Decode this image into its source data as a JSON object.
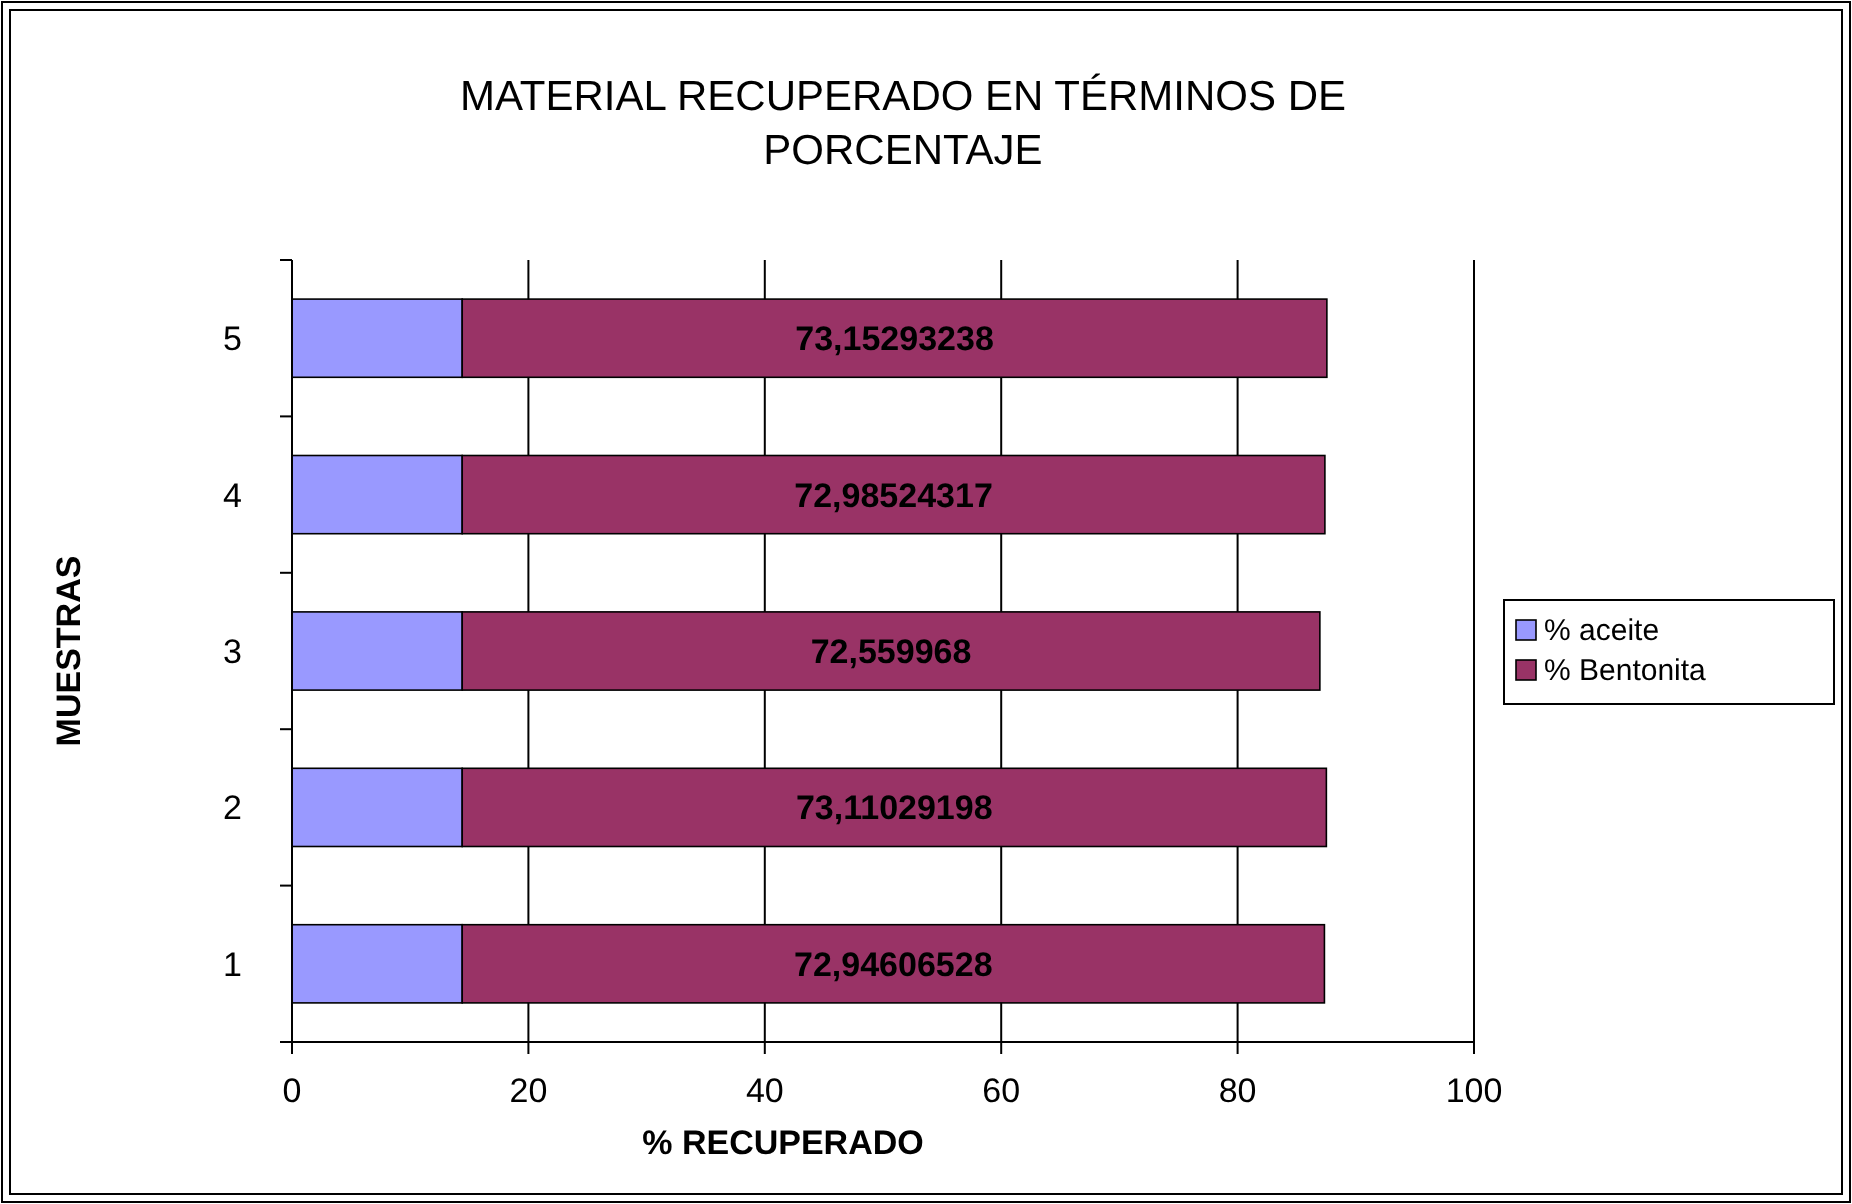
{
  "chart_data": {
    "type": "bar",
    "title": "MATERIAL RECUPERADO EN TÉRMINOS DE PORCENTAJE",
    "xlabel": "% RECUPERADO",
    "ylabel": "MUESTRAS",
    "orientation": "horizontal",
    "stacked": true,
    "categories": [
      "5",
      "4",
      "3",
      "2",
      "1"
    ],
    "series": [
      {
        "name": "% aceite",
        "color": "#9999ff",
        "values": [
          14.4,
          14.4,
          14.4,
          14.4,
          14.4
        ]
      },
      {
        "name": "% Bentonita",
        "color": "#993366",
        "values": [
          73.15293238,
          72.98524317,
          72.559968,
          73.11029198,
          72.94606528
        ],
        "value_labels": [
          "73,15293238",
          "72,98524317",
          "72,559968",
          "73,11029198",
          "72,94606528"
        ]
      }
    ],
    "xlim": [
      0,
      100
    ],
    "xticks": [
      0,
      20,
      40,
      60,
      80,
      100
    ],
    "grid": "x",
    "legend": "right"
  }
}
